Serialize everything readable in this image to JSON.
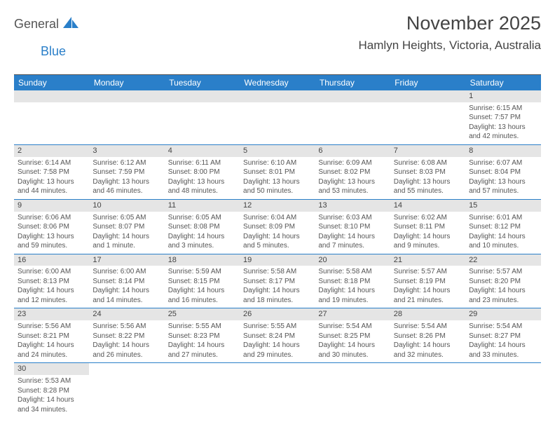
{
  "brand": {
    "part1": "General",
    "part2": "Blue"
  },
  "title": "November 2025",
  "location": "Hamlyn Heights, Victoria, Australia",
  "colors": {
    "header_bg": "#2a7fc9",
    "header_fg": "#ffffff",
    "daynum_bg": "#e5e5e5",
    "text": "#555555",
    "rule": "#2a7fc9"
  },
  "dayHeaders": [
    "Sunday",
    "Monday",
    "Tuesday",
    "Wednesday",
    "Thursday",
    "Friday",
    "Saturday"
  ],
  "weeks": [
    [
      null,
      null,
      null,
      null,
      null,
      null,
      {
        "n": "1",
        "sunrise": "Sunrise: 6:15 AM",
        "sunset": "Sunset: 7:57 PM",
        "daylight": "Daylight: 13 hours and 42 minutes."
      }
    ],
    [
      {
        "n": "2",
        "sunrise": "Sunrise: 6:14 AM",
        "sunset": "Sunset: 7:58 PM",
        "daylight": "Daylight: 13 hours and 44 minutes."
      },
      {
        "n": "3",
        "sunrise": "Sunrise: 6:12 AM",
        "sunset": "Sunset: 7:59 PM",
        "daylight": "Daylight: 13 hours and 46 minutes."
      },
      {
        "n": "4",
        "sunrise": "Sunrise: 6:11 AM",
        "sunset": "Sunset: 8:00 PM",
        "daylight": "Daylight: 13 hours and 48 minutes."
      },
      {
        "n": "5",
        "sunrise": "Sunrise: 6:10 AM",
        "sunset": "Sunset: 8:01 PM",
        "daylight": "Daylight: 13 hours and 50 minutes."
      },
      {
        "n": "6",
        "sunrise": "Sunrise: 6:09 AM",
        "sunset": "Sunset: 8:02 PM",
        "daylight": "Daylight: 13 hours and 53 minutes."
      },
      {
        "n": "7",
        "sunrise": "Sunrise: 6:08 AM",
        "sunset": "Sunset: 8:03 PM",
        "daylight": "Daylight: 13 hours and 55 minutes."
      },
      {
        "n": "8",
        "sunrise": "Sunrise: 6:07 AM",
        "sunset": "Sunset: 8:04 PM",
        "daylight": "Daylight: 13 hours and 57 minutes."
      }
    ],
    [
      {
        "n": "9",
        "sunrise": "Sunrise: 6:06 AM",
        "sunset": "Sunset: 8:06 PM",
        "daylight": "Daylight: 13 hours and 59 minutes."
      },
      {
        "n": "10",
        "sunrise": "Sunrise: 6:05 AM",
        "sunset": "Sunset: 8:07 PM",
        "daylight": "Daylight: 14 hours and 1 minute."
      },
      {
        "n": "11",
        "sunrise": "Sunrise: 6:05 AM",
        "sunset": "Sunset: 8:08 PM",
        "daylight": "Daylight: 14 hours and 3 minutes."
      },
      {
        "n": "12",
        "sunrise": "Sunrise: 6:04 AM",
        "sunset": "Sunset: 8:09 PM",
        "daylight": "Daylight: 14 hours and 5 minutes."
      },
      {
        "n": "13",
        "sunrise": "Sunrise: 6:03 AM",
        "sunset": "Sunset: 8:10 PM",
        "daylight": "Daylight: 14 hours and 7 minutes."
      },
      {
        "n": "14",
        "sunrise": "Sunrise: 6:02 AM",
        "sunset": "Sunset: 8:11 PM",
        "daylight": "Daylight: 14 hours and 9 minutes."
      },
      {
        "n": "15",
        "sunrise": "Sunrise: 6:01 AM",
        "sunset": "Sunset: 8:12 PM",
        "daylight": "Daylight: 14 hours and 10 minutes."
      }
    ],
    [
      {
        "n": "16",
        "sunrise": "Sunrise: 6:00 AM",
        "sunset": "Sunset: 8:13 PM",
        "daylight": "Daylight: 14 hours and 12 minutes."
      },
      {
        "n": "17",
        "sunrise": "Sunrise: 6:00 AM",
        "sunset": "Sunset: 8:14 PM",
        "daylight": "Daylight: 14 hours and 14 minutes."
      },
      {
        "n": "18",
        "sunrise": "Sunrise: 5:59 AM",
        "sunset": "Sunset: 8:15 PM",
        "daylight": "Daylight: 14 hours and 16 minutes."
      },
      {
        "n": "19",
        "sunrise": "Sunrise: 5:58 AM",
        "sunset": "Sunset: 8:17 PM",
        "daylight": "Daylight: 14 hours and 18 minutes."
      },
      {
        "n": "20",
        "sunrise": "Sunrise: 5:58 AM",
        "sunset": "Sunset: 8:18 PM",
        "daylight": "Daylight: 14 hours and 19 minutes."
      },
      {
        "n": "21",
        "sunrise": "Sunrise: 5:57 AM",
        "sunset": "Sunset: 8:19 PM",
        "daylight": "Daylight: 14 hours and 21 minutes."
      },
      {
        "n": "22",
        "sunrise": "Sunrise: 5:57 AM",
        "sunset": "Sunset: 8:20 PM",
        "daylight": "Daylight: 14 hours and 23 minutes."
      }
    ],
    [
      {
        "n": "23",
        "sunrise": "Sunrise: 5:56 AM",
        "sunset": "Sunset: 8:21 PM",
        "daylight": "Daylight: 14 hours and 24 minutes."
      },
      {
        "n": "24",
        "sunrise": "Sunrise: 5:56 AM",
        "sunset": "Sunset: 8:22 PM",
        "daylight": "Daylight: 14 hours and 26 minutes."
      },
      {
        "n": "25",
        "sunrise": "Sunrise: 5:55 AM",
        "sunset": "Sunset: 8:23 PM",
        "daylight": "Daylight: 14 hours and 27 minutes."
      },
      {
        "n": "26",
        "sunrise": "Sunrise: 5:55 AM",
        "sunset": "Sunset: 8:24 PM",
        "daylight": "Daylight: 14 hours and 29 minutes."
      },
      {
        "n": "27",
        "sunrise": "Sunrise: 5:54 AM",
        "sunset": "Sunset: 8:25 PM",
        "daylight": "Daylight: 14 hours and 30 minutes."
      },
      {
        "n": "28",
        "sunrise": "Sunrise: 5:54 AM",
        "sunset": "Sunset: 8:26 PM",
        "daylight": "Daylight: 14 hours and 32 minutes."
      },
      {
        "n": "29",
        "sunrise": "Sunrise: 5:54 AM",
        "sunset": "Sunset: 8:27 PM",
        "daylight": "Daylight: 14 hours and 33 minutes."
      }
    ],
    [
      {
        "n": "30",
        "sunrise": "Sunrise: 5:53 AM",
        "sunset": "Sunset: 8:28 PM",
        "daylight": "Daylight: 14 hours and 34 minutes."
      },
      null,
      null,
      null,
      null,
      null,
      null
    ]
  ]
}
